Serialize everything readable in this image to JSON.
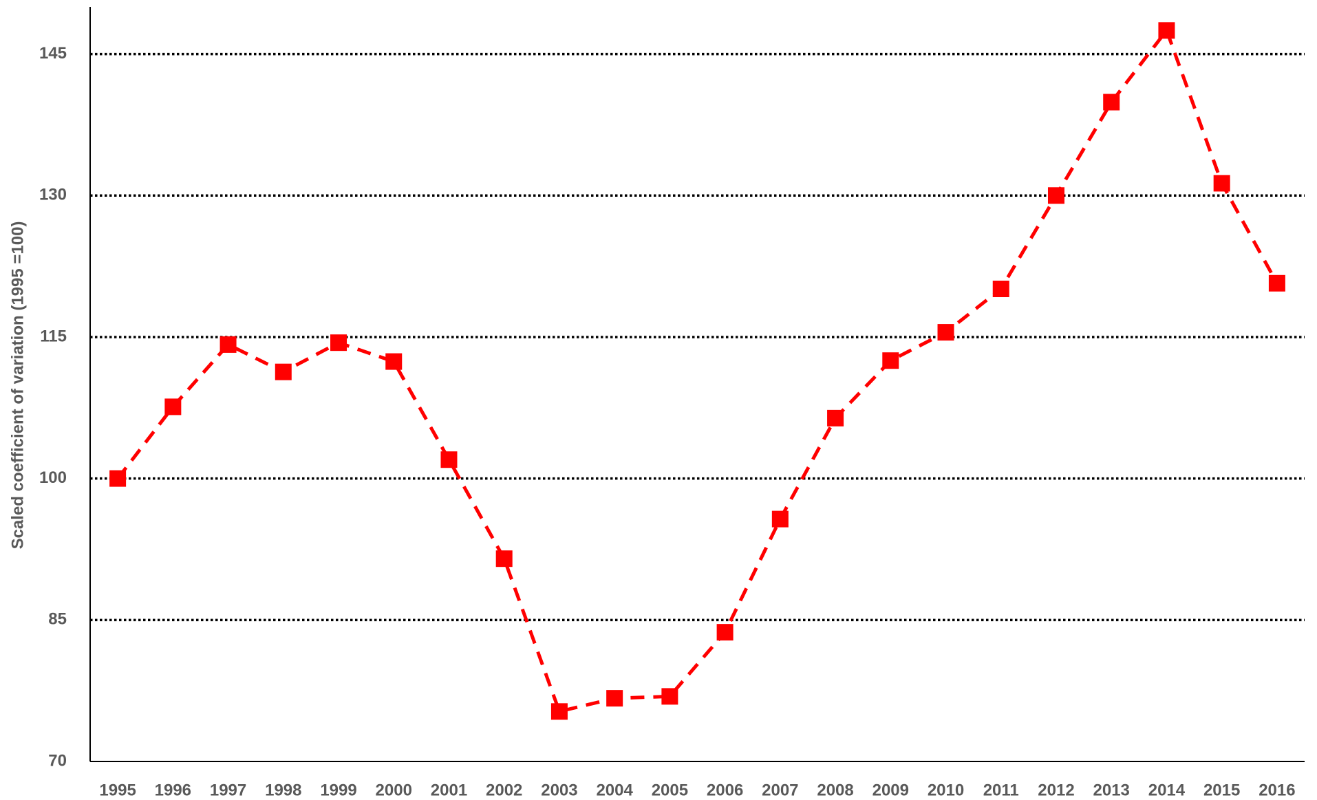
{
  "chart_data": {
    "type": "line",
    "y_label": "Scaled coefficient of variation (1995 =100)",
    "categories": [
      "1995",
      "1996",
      "1997",
      "1998",
      "1999",
      "2000",
      "2001",
      "2002",
      "2003",
      "2004",
      "2005",
      "2006",
      "2007",
      "2008",
      "2009",
      "2010",
      "2011",
      "2012",
      "2013",
      "2014",
      "2015",
      "2016"
    ],
    "series": [
      {
        "color": "#ff0000",
        "values": [
          100,
          107.6,
          114.2,
          111.3,
          114.4,
          112.4,
          102.0,
          91.5,
          75.3,
          76.7,
          76.9,
          83.7,
          95.7,
          106.4,
          112.5,
          115.5,
          120.1,
          130.0,
          139.9,
          147.5,
          131.3,
          120.7
        ]
      }
    ],
    "ylim": [
      70,
      150
    ],
    "yticks": [
      70,
      85,
      100,
      115,
      130,
      145
    ],
    "grid": true
  }
}
